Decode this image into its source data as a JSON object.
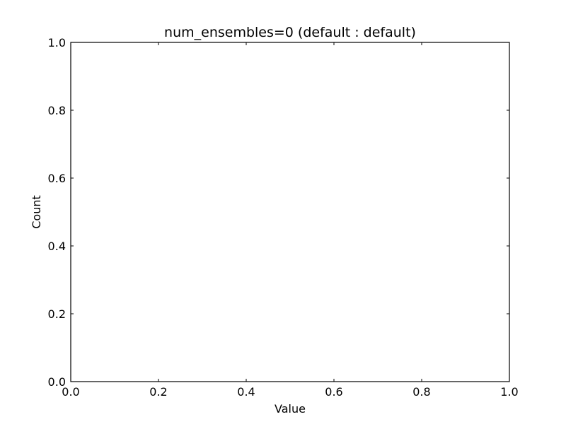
{
  "chart_data": {
    "type": "bar",
    "title": "num_ensembles=0 (default : default)",
    "xlabel": "Value",
    "ylabel": "Count",
    "xlim": [
      0.0,
      1.0
    ],
    "ylim": [
      0.0,
      1.0
    ],
    "xticks": [
      "0.0",
      "0.2",
      "0.4",
      "0.6",
      "0.8",
      "1.0"
    ],
    "yticks": [
      "0.0",
      "0.2",
      "0.4",
      "0.6",
      "0.8",
      "1.0"
    ],
    "categories": [],
    "values": [],
    "grid": false,
    "legend": "none"
  }
}
